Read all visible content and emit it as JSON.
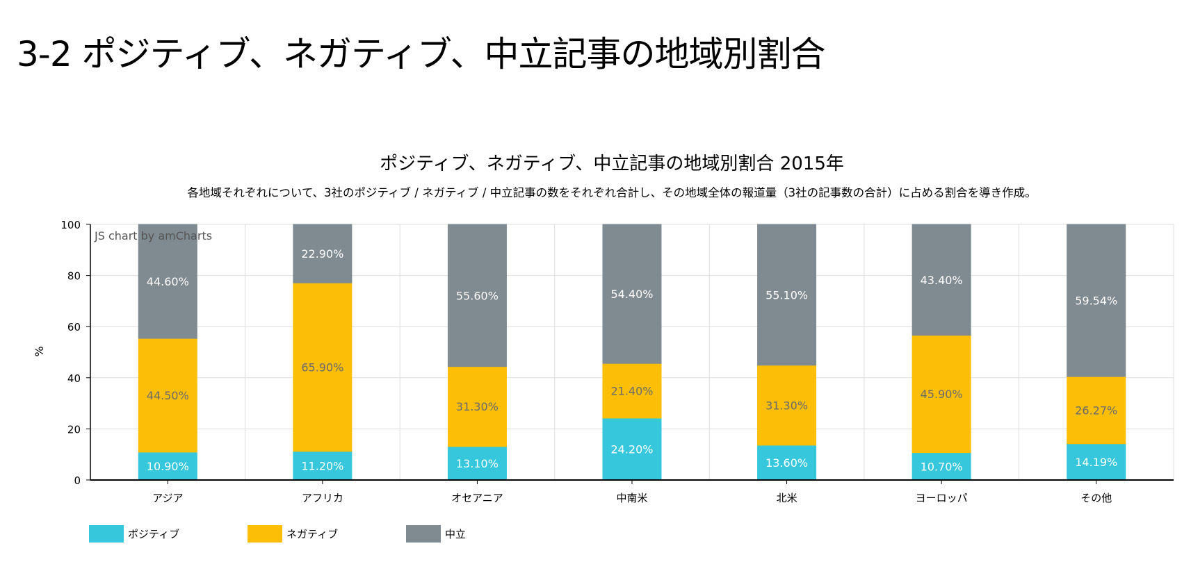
{
  "page": {
    "title": "3-2 ポジティブ、ネガティブ、中立記事の地域別割合"
  },
  "chart_data": {
    "type": "bar",
    "stacked": true,
    "title": "ポジティブ、ネガティブ、中立記事の地域別割合 2015年",
    "subtitle": "各地域それぞれについて、3社のポジティブ / ネガティブ / 中立記事の数をそれぞれ合計し、その地域全体の報道量（3社の記事数の合計）に占める割合を導き作成。",
    "ylabel": "%",
    "xlabel": "",
    "ylim": [
      0,
      100
    ],
    "yticks": [
      0,
      20,
      40,
      60,
      80,
      100
    ],
    "grid": true,
    "watermark": "JS chart by amCharts",
    "legend_position": "bottom-left",
    "categories": [
      "アジア",
      "アフリカ",
      "オセアニア",
      "中南米",
      "北米",
      "ヨーロッパ",
      "その他"
    ],
    "series": [
      {
        "name": "ポジティブ",
        "color": "#37c7dd",
        "label_color": "#ffffff",
        "values": [
          10.9,
          11.2,
          13.1,
          24.2,
          13.6,
          10.7,
          14.19
        ],
        "labels": [
          "10.90%",
          "11.20%",
          "13.10%",
          "24.20%",
          "13.60%",
          "10.70%",
          "14.19%"
        ]
      },
      {
        "name": "ネガティブ",
        "color": "#fdbe08",
        "label_color": "#6b6b6b",
        "values": [
          44.5,
          65.9,
          31.3,
          21.4,
          31.3,
          45.9,
          26.27
        ],
        "labels": [
          "44.50%",
          "65.90%",
          "31.30%",
          "21.40%",
          "31.30%",
          "45.90%",
          "26.27%"
        ]
      },
      {
        "name": "中立",
        "color": "#7f8b91",
        "label_color": "#ffffff",
        "values": [
          44.6,
          22.9,
          55.6,
          54.4,
          55.1,
          43.4,
          59.54
        ],
        "labels": [
          "44.60%",
          "22.90%",
          "55.60%",
          "54.40%",
          "55.10%",
          "43.40%",
          "59.54%"
        ]
      }
    ]
  }
}
